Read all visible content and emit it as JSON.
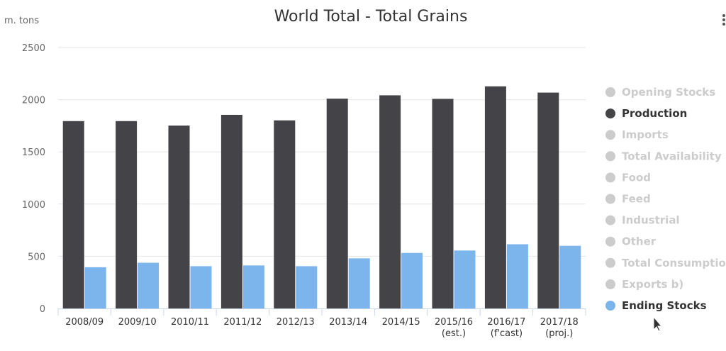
{
  "chart_data": {
    "type": "bar",
    "title": "World Total - Total Grains",
    "unit_label": "m. tons",
    "ylim": [
      0,
      2500
    ],
    "yticks": [
      0,
      500,
      1000,
      1500,
      2000,
      2500
    ],
    "grid": true,
    "legend_position": "right",
    "categories": [
      [
        "2008/09"
      ],
      [
        "2009/10"
      ],
      [
        "2010/11"
      ],
      [
        "2011/12"
      ],
      [
        "2012/13"
      ],
      [
        "2013/14"
      ],
      [
        "2014/15"
      ],
      [
        "2015/16",
        "(est.)"
      ],
      [
        "2016/17",
        "(f'cast)"
      ],
      [
        "2017/18",
        "(proj.)"
      ]
    ],
    "series": [
      {
        "name": "Production",
        "color": "#434348",
        "values": [
          1795,
          1795,
          1752,
          1855,
          1802,
          2010,
          2042,
          2008,
          2128,
          2068
        ]
      },
      {
        "name": "Ending Stocks",
        "color": "#7cb5ec",
        "values": [
          395,
          438,
          405,
          412,
          405,
          480,
          532,
          555,
          615,
          600
        ]
      }
    ],
    "legend": [
      {
        "name": "Opening Stocks",
        "active": false,
        "color": "#cccccc"
      },
      {
        "name": "Production",
        "active": true,
        "color": "#434348"
      },
      {
        "name": "Imports",
        "active": false,
        "color": "#cccccc"
      },
      {
        "name": "Total Availability",
        "active": false,
        "color": "#cccccc"
      },
      {
        "name": "Food",
        "active": false,
        "color": "#cccccc"
      },
      {
        "name": "Feed",
        "active": false,
        "color": "#cccccc"
      },
      {
        "name": "Industrial",
        "active": false,
        "color": "#cccccc"
      },
      {
        "name": "Other",
        "active": false,
        "color": "#cccccc"
      },
      {
        "name": "Total Consumption",
        "active": false,
        "color": "#cccccc"
      },
      {
        "name": "Exports b)",
        "active": false,
        "color": "#cccccc"
      },
      {
        "name": "Ending Stocks",
        "active": true,
        "color": "#7cb5ec"
      }
    ]
  },
  "colors": {
    "grid": "#e6e6e6",
    "axis": "#ccd6eb",
    "legend_active_text": "#333333",
    "legend_inactive_text": "#cccccc"
  }
}
